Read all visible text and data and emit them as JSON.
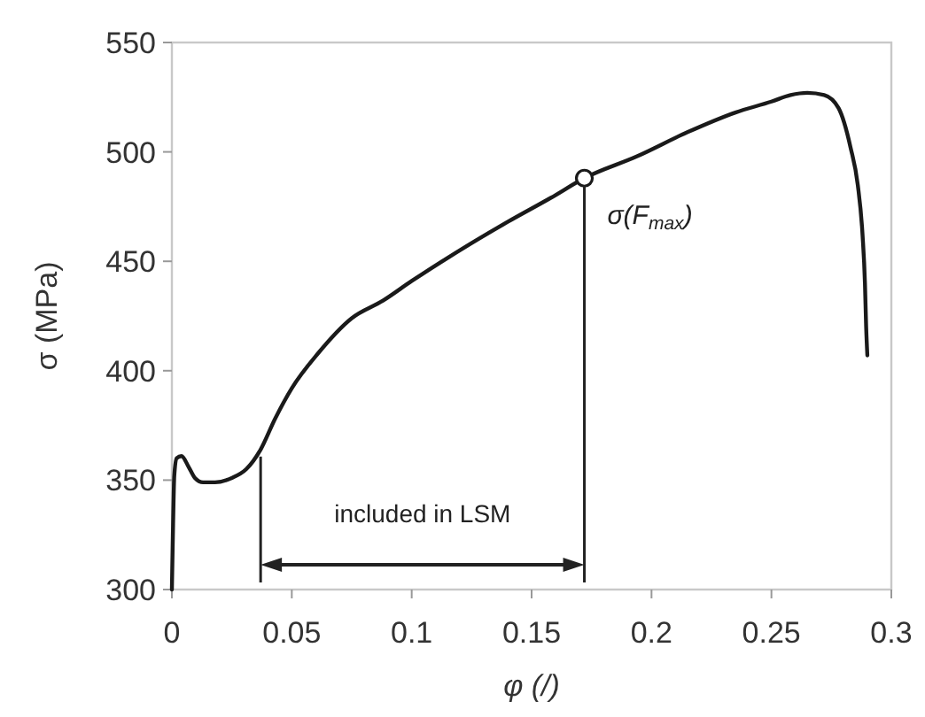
{
  "chart_data": {
    "type": "line",
    "xlabel": "φ (/)",
    "ylabel": "σ (MPa)",
    "xlim": [
      0,
      0.3
    ],
    "xticks": [
      0,
      0.05,
      0.1,
      0.15,
      0.2,
      0.25,
      0.3
    ],
    "ylim": [
      300,
      550
    ],
    "yticks": [
      300,
      350,
      400,
      450,
      500,
      550
    ],
    "series": [
      {
        "color": "#1a1a1a",
        "x": [
          0,
          0.0005,
          0.001,
          0.002,
          0.004,
          0.007,
          0.0096,
          0.013,
          0.018,
          0.025,
          0.031,
          0.037,
          0.043,
          0.05,
          0.061,
          0.075,
          0.088,
          0.1,
          0.12,
          0.14,
          0.158,
          0.172,
          0.194,
          0.215,
          0.235,
          0.25,
          0.258,
          0.265,
          0.272,
          0.278,
          0.283,
          0.286,
          0.288,
          0.289,
          0.2895,
          0.29
        ],
        "values": [
          300,
          330,
          352,
          360,
          361,
          356,
          351,
          349,
          349,
          351,
          355,
          364,
          378,
          392,
          408,
          424,
          432,
          441,
          455,
          468,
          479,
          488,
          498,
          509,
          518,
          523,
          526,
          527,
          526,
          520,
          502,
          485,
          462,
          440,
          420,
          407
        ]
      },
      {
        "type": "scatter",
        "marker": "circle",
        "color": "#1a1a1a",
        "x": [
          0.172
        ],
        "values": [
          488
        ]
      }
    ],
    "ref_lines": [
      {
        "axis": "x",
        "value": 0.037
      },
      {
        "axis": "x",
        "value": 0.172
      }
    ],
    "annotations": [
      {
        "text": "σ(F$_{max}$)",
        "x": 0.172,
        "y": 488
      },
      "included in LSM"
    ]
  }
}
